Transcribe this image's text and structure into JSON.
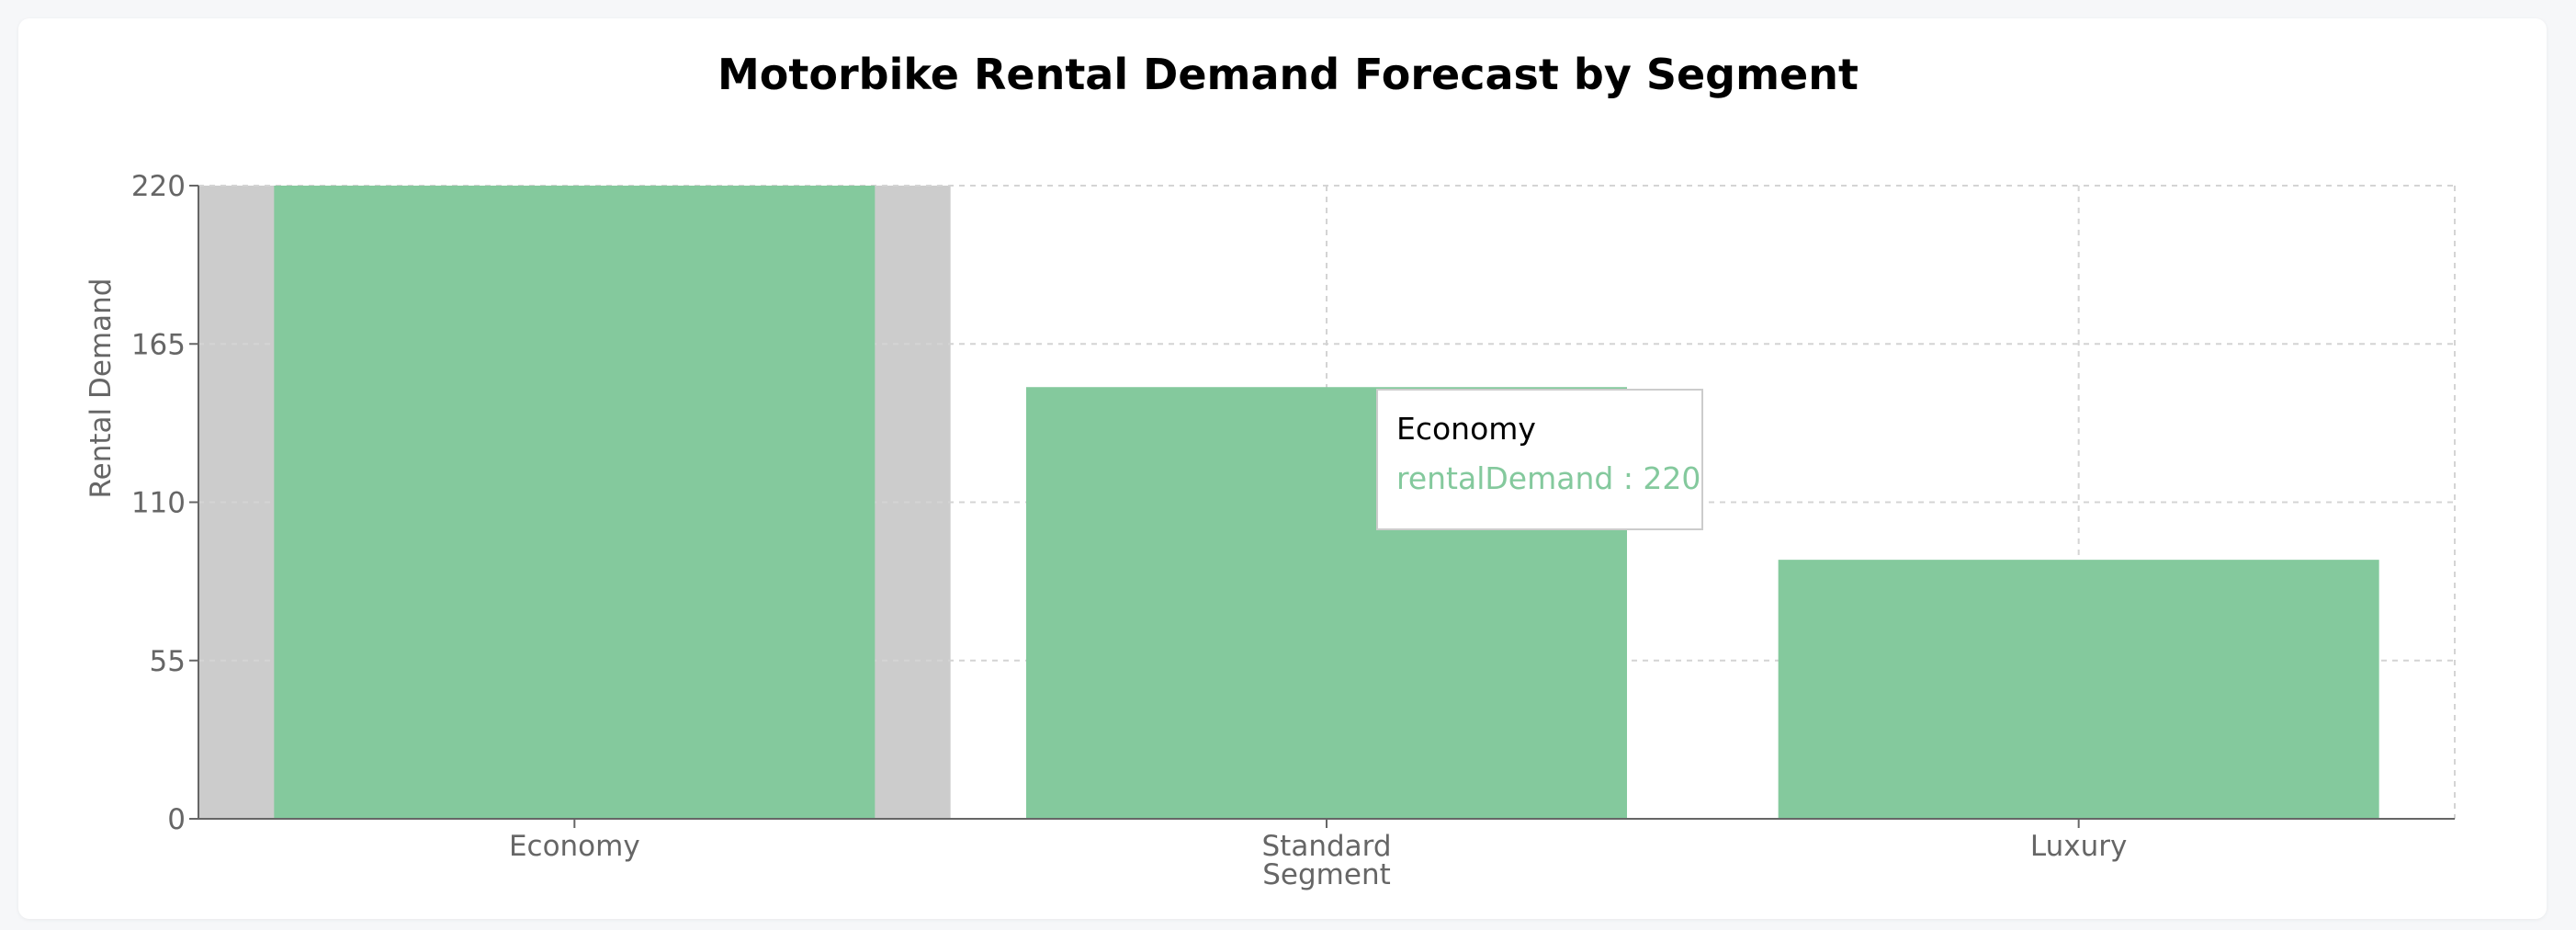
{
  "chart_data": {
    "type": "bar",
    "title": "Motorbike Rental Demand Forecast by Segment",
    "xlabel": "Segment",
    "ylabel": "Rental Demand",
    "categories": [
      "Economy",
      "Standard",
      "Luxury"
    ],
    "series": [
      {
        "key": "rentalDemand",
        "values": [
          220,
          150,
          90
        ]
      }
    ],
    "ylim": [
      0,
      220
    ],
    "yticks": [
      "0",
      "55",
      "110",
      "165",
      "220"
    ],
    "grid": true,
    "legend": "none",
    "highlighted_category": "Economy"
  },
  "colors": {
    "bar": "#84c99d",
    "hover_band": "#cccccc",
    "grid": "#d4d4d4",
    "axis": "#666666",
    "tick_text": "#666666"
  },
  "tooltip": {
    "label": "Economy",
    "item": "rentalDemand : 220",
    "item_color": "#84c99d"
  }
}
